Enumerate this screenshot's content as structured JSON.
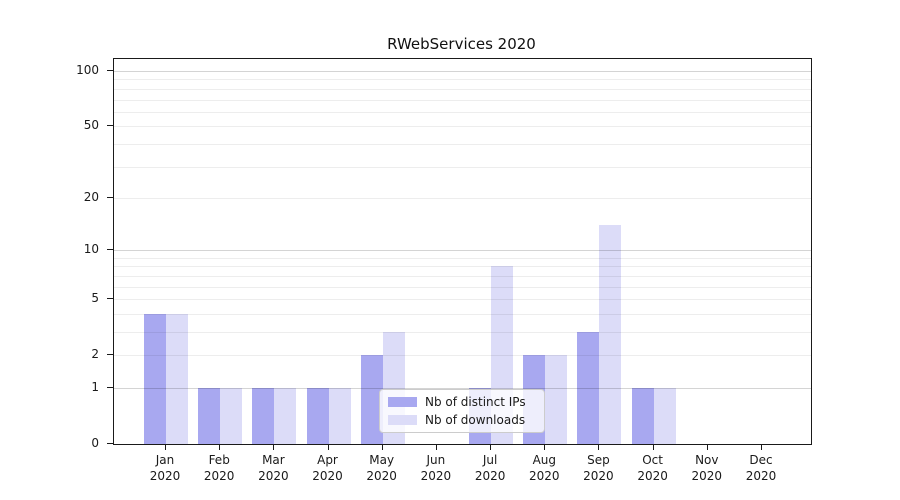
{
  "chart_data": {
    "type": "bar",
    "title": "RWebServices 2020",
    "categories": [
      "Jan",
      "Feb",
      "Mar",
      "Apr",
      "May",
      "Jun",
      "Jul",
      "Aug",
      "Sep",
      "Oct",
      "Nov",
      "Dec"
    ],
    "year_label": "2020",
    "series": [
      {
        "name": "Nb of distinct IPs",
        "color": "#a8a8f0",
        "values": [
          4,
          1,
          1,
          1,
          2,
          0,
          1,
          2,
          3,
          1,
          0,
          0
        ]
      },
      {
        "name": "Nb of downloads",
        "color": "#dcdcf8",
        "values": [
          4,
          1,
          1,
          1,
          3,
          0,
          8,
          2,
          14,
          1,
          0,
          0
        ]
      }
    ],
    "yscale": "log1p",
    "ylim": [
      0,
      116
    ],
    "yticks": [
      0,
      1,
      2,
      5,
      10,
      20,
      50,
      100
    ],
    "minor_gridlines": [
      2,
      3,
      4,
      5,
      6,
      7,
      8,
      9,
      20,
      30,
      40,
      50,
      60,
      70,
      80,
      90
    ],
    "major_gridlines": [
      1,
      10,
      100
    ],
    "grid": true,
    "legend_position": "lower center",
    "xlabel": "",
    "ylabel": ""
  }
}
